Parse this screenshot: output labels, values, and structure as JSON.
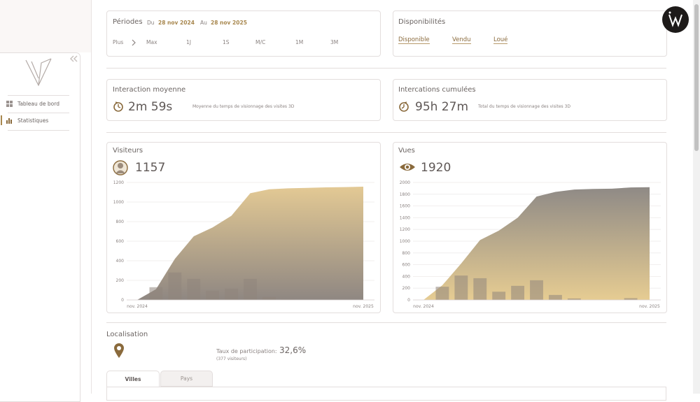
{
  "sidebar": {
    "items": [
      "Tableau de bord",
      "Statistiques"
    ]
  },
  "periods": {
    "title": "Périodes",
    "from_label": "Du",
    "from": "28 nov 2024",
    "to_label": "Au",
    "to": "28 nov 2025",
    "more": "Plus",
    "options": [
      "Max",
      "1J",
      "1S",
      "M/C",
      "1M",
      "3M"
    ]
  },
  "availability": {
    "title": "Disponibilités",
    "links": [
      "Disponible",
      "Vendu",
      "Loué"
    ]
  },
  "interaction": {
    "title": "Interaction moyenne",
    "value": "2m 59s",
    "description": "Moyenne du temps de visionnage des visites 3D"
  },
  "cumulative": {
    "title": "Intercations cumulées",
    "value": "95h 27m",
    "description": "Total du temps de visionnage des visites 3D"
  },
  "chart_data": [
    {
      "type": "area",
      "title": "Visiteurs",
      "total": 1157,
      "categories": [
        "nov. 2024",
        null,
        null,
        null,
        null,
        null,
        null,
        null,
        null,
        null,
        null,
        null,
        "nov. 2025"
      ],
      "series": [
        {
          "kind": "area",
          "colors": [
            "#e3c994",
            "#8f8782"
          ],
          "values": [
            0,
            110,
            420,
            650,
            740,
            860,
            1090,
            1130,
            1140,
            1145,
            1150,
            1153,
            1157
          ]
        },
        {
          "kind": "bar",
          "color": "#8f857c",
          "values": [
            0,
            130,
            280,
            215,
            95,
            115,
            215,
            30,
            7,
            0,
            0,
            0,
            0
          ]
        }
      ],
      "ylim": [
        0,
        1200
      ],
      "yticks": [
        0,
        200,
        400,
        600,
        800,
        1000,
        1200
      ],
      "grid": true
    },
    {
      "type": "area",
      "title": "Vues",
      "total": 1920,
      "categories": [
        "nov. 2024",
        null,
        null,
        null,
        null,
        null,
        null,
        null,
        null,
        null,
        null,
        null,
        "nov. 2025"
      ],
      "series": [
        {
          "kind": "area",
          "colors": [
            "#8f8a86",
            "#e6cc92"
          ],
          "values": [
            0,
            250,
            620,
            1020,
            1180,
            1400,
            1760,
            1840,
            1880,
            1890,
            1895,
            1915,
            1920
          ]
        },
        {
          "kind": "bar",
          "color": "#8f857c",
          "values": [
            0,
            225,
            415,
            370,
            140,
            240,
            335,
            85,
            25,
            0,
            0,
            30,
            0
          ]
        }
      ],
      "ylim": [
        0,
        2000
      ],
      "yticks": [
        0,
        200,
        400,
        600,
        800,
        1000,
        1200,
        1400,
        1600,
        1800,
        2000
      ],
      "grid": true
    }
  ],
  "location": {
    "title": "Localisation",
    "rate_label": "Taux de participation:",
    "rate": "32,6%",
    "visitors": "(377 visiteurs)",
    "tabs": [
      "Villes",
      "Pays"
    ]
  }
}
